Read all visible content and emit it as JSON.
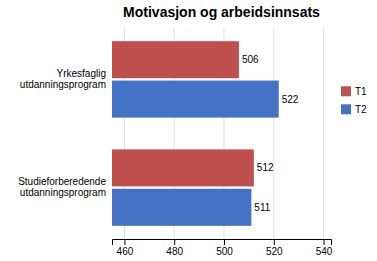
{
  "chart_data": {
    "type": "bar",
    "orientation": "horizontal",
    "title": "Motivasjon og arbeidsinnsats",
    "categories": [
      "Yrkesfaglig\nutdanningsprogram",
      "Studieforberedende\nutdanningsprogram"
    ],
    "series": [
      {
        "name": "T1",
        "color": "#c0504d",
        "values": [
          506,
          512
        ]
      },
      {
        "name": "T2",
        "color": "#4472c4",
        "values": [
          522,
          511
        ]
      }
    ],
    "xlim": [
      455,
      543
    ],
    "xticks": [
      460,
      480,
      500,
      520,
      540
    ],
    "grid": true,
    "legend": "right",
    "data_labels": true
  }
}
